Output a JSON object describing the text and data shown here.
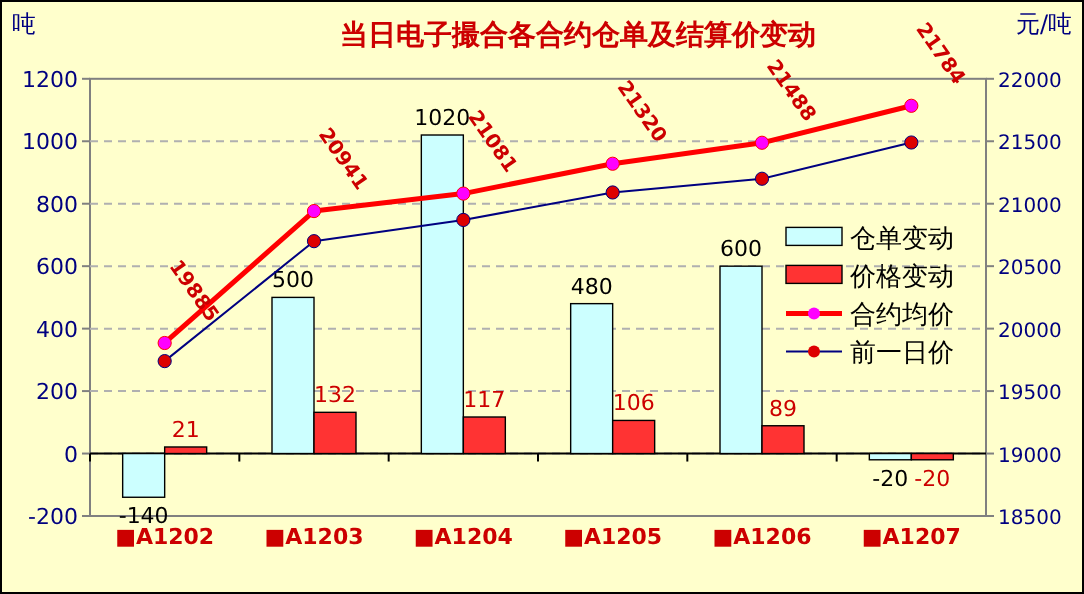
{
  "chart_data": {
    "type": "bar",
    "title": "当日电子撮合各合约仓单及结算价变动",
    "ylabel": "吨",
    "y2label": "元/吨",
    "categories": [
      "■A1202",
      "■A1203",
      "■A1204",
      "■A1205",
      "■A1206",
      "■A1207"
    ],
    "series": [
      {
        "name": "仓单变动",
        "color": "#ccffff",
        "values": [
          -140,
          500,
          1020,
          480,
          600,
          -20
        ],
        "value_labels": [
          "-140",
          "500",
          "1020",
          "480",
          "600",
          "-20"
        ]
      },
      {
        "name": "价格变动",
        "color": "#ff3333",
        "values": [
          21,
          132,
          117,
          106,
          89,
          -20
        ],
        "value_labels": [
          "21",
          "132",
          "117",
          "106",
          "89",
          "-20"
        ]
      },
      {
        "name": "合约均价",
        "type": "line",
        "axis": "y2",
        "color": "#ff0000",
        "marker": "circle",
        "values": [
          19885,
          20941,
          21081,
          21320,
          21488,
          21784
        ],
        "value_labels": [
          "19885",
          "20941",
          "21081",
          "21320",
          "21488",
          "21784"
        ]
      },
      {
        "name": "前一日价",
        "type": "line",
        "axis": "y2",
        "color": "#000080",
        "marker": "circle",
        "values": [
          19740,
          20700,
          20870,
          21090,
          21200,
          21490
        ]
      }
    ],
    "ylim": [
      -200,
      1200
    ],
    "yticks": [
      -200,
      0,
      200,
      400,
      600,
      800,
      1000,
      1200
    ],
    "y2lim": [
      18500,
      22000
    ],
    "y2ticks": [
      18500,
      19000,
      19500,
      20000,
      20500,
      21000,
      21500,
      22000
    ],
    "grid": "y",
    "legend": "right"
  }
}
